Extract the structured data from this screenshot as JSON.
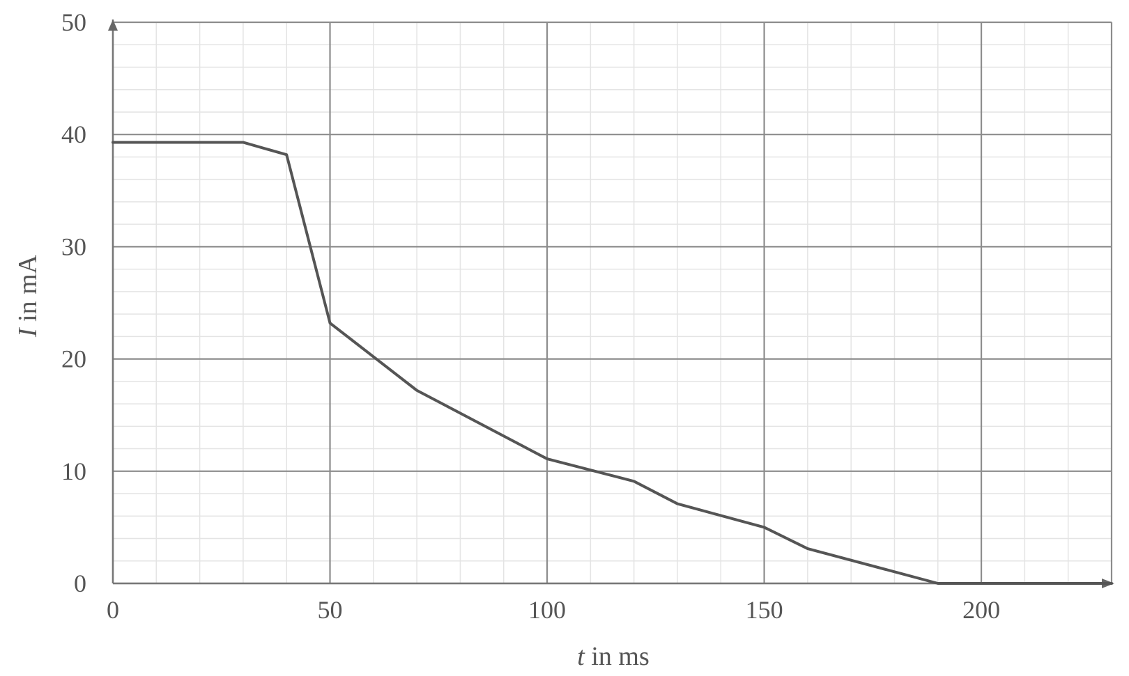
{
  "chart_data": {
    "type": "line",
    "title": "",
    "xlabel": {
      "var": "t",
      "rest": " in ms"
    },
    "ylabel": {
      "var": "I",
      "rest": " in mA"
    },
    "xlim": [
      0,
      230
    ],
    "ylim": [
      0,
      50
    ],
    "x_major_ticks": [
      0,
      50,
      100,
      150,
      200
    ],
    "y_major_ticks": [
      0,
      10,
      20,
      30,
      40,
      50
    ],
    "x_tick_labels": [
      "0",
      "50",
      "100",
      "150",
      "200"
    ],
    "y_tick_labels": [
      "0",
      "10",
      "20",
      "30",
      "40",
      "50"
    ],
    "x_minor_step": 10,
    "y_minor_step": 2,
    "grid": true,
    "legend": "none",
    "series": [
      {
        "x": [
          0,
          30,
          40,
          50,
          70,
          100,
          120,
          130,
          150,
          160,
          190,
          230
        ],
        "y": [
          39.3,
          39.3,
          38.2,
          23.2,
          17.2,
          11.1,
          9.1,
          7.1,
          5.0,
          3.1,
          0,
          0
        ]
      }
    ],
    "colors": {
      "line": "#555555",
      "major_grid": "#8c8c8c",
      "minor_grid": "#e4e4e4",
      "axis": "#777777",
      "text": "#555555"
    }
  }
}
